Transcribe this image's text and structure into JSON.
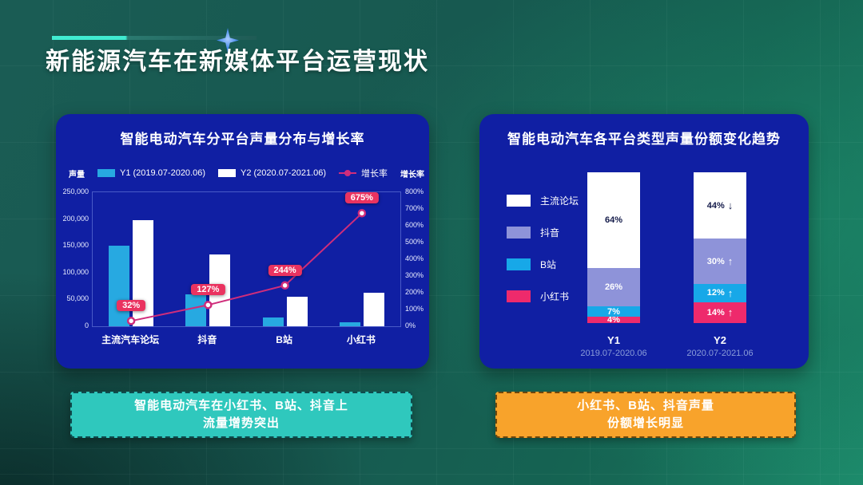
{
  "slide_title": "新能源汽车在新媒体平台运营现状",
  "chart_data": [
    {
      "type": "bar",
      "subtype": "grouped-bars-with-growth-line",
      "title": "智能电动汽车分平台声量分布与增长率",
      "y_left_label": "声量",
      "y_right_label": "增长率",
      "categories": [
        "主流汽车论坛",
        "抖音",
        "B站",
        "小红书"
      ],
      "bar_series": [
        {
          "name": "Y1 (2019.07-2020.06)",
          "color": "#27a9e1",
          "values": [
            150000,
            59000,
            16000,
            8000
          ]
        },
        {
          "name": "Y2 (2020.07-2021.06)",
          "color": "#ffffff",
          "values": [
            198000,
            134000,
            55000,
            62000
          ]
        }
      ],
      "line_series": {
        "name": "增长率",
        "color": "#cf2d7b",
        "values_pct": [
          32,
          127,
          244,
          675
        ],
        "point_labels": [
          "32%",
          "127%",
          "244%",
          "675%"
        ]
      },
      "y_left_ticks": [
        "250,000",
        "200,000",
        "150,000",
        "100,000",
        "50,000",
        "0"
      ],
      "y_left_max": 250000,
      "y_right_ticks": [
        "800%",
        "700%",
        "600%",
        "500%",
        "400%",
        "300%",
        "200%",
        "100%",
        "0%"
      ],
      "y_right_max": 800,
      "legend_position": "top",
      "grid": false,
      "badge_color": "#ea3360"
    },
    {
      "type": "bar",
      "subtype": "stacked-100pct",
      "title": "智能电动汽车各平台类型声量份额变化趋势",
      "legend": [
        {
          "label": "主流论坛",
          "color": "#ffffff"
        },
        {
          "label": "抖音",
          "color": "#8e93d9"
        },
        {
          "label": "B站",
          "color": "#17a8e8"
        },
        {
          "label": "小红书",
          "color": "#ee2a6c"
        }
      ],
      "legend_position": "left",
      "stacks": [
        {
          "category": "Y1",
          "period": "2019.07-2020.06",
          "segments": [
            {
              "name": "主流论坛",
              "pct": 64,
              "label": "64%",
              "trend": ""
            },
            {
              "name": "抖音",
              "pct": 26,
              "label": "26%",
              "trend": ""
            },
            {
              "name": "B站",
              "pct": 7,
              "label": "7%",
              "trend": ""
            },
            {
              "name": "小红书",
              "pct": 4,
              "label": "4%",
              "trend": ""
            }
          ]
        },
        {
          "category": "Y2",
          "period": "2020.07-2021.06",
          "segments": [
            {
              "name": "主流论坛",
              "pct": 44,
              "label": "44%",
              "trend": "down"
            },
            {
              "name": "抖音",
              "pct": 30,
              "label": "30%",
              "trend": "up"
            },
            {
              "name": "B站",
              "pct": 12,
              "label": "12%",
              "trend": "up"
            },
            {
              "name": "小红书",
              "pct": 14,
              "label": "14%",
              "trend": "up"
            }
          ]
        }
      ]
    }
  ],
  "callouts": [
    {
      "line1": "智能电动汽车在小红书、B站、抖音上",
      "line2": "流量增势突出",
      "bg": "#2fc8bd"
    },
    {
      "line1": "小红书、B站、抖音声量",
      "line2": "份额增长明显",
      "bg": "#f8a32b"
    }
  ],
  "colors": {
    "panel_bg": "#101fa3",
    "slide_bg_teal": "#17594f",
    "accent_line": "#41ecd2",
    "growth_line": "#cf2d7b",
    "badge": "#ea3360",
    "y1_bar": "#27a9e1",
    "y2_bar": "#ffffff",
    "callout_left": "#2fc8bd",
    "callout_right": "#f8a32b"
  }
}
